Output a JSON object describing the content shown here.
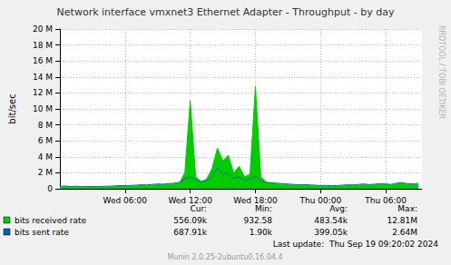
{
  "chart_data": {
    "type": "line",
    "title": "Network interface vmxnet3 Ethernet Adapter - Throughput - by day",
    "y_label": "bit/sec",
    "side_label": "RRDTOOL / TOBI OETIKER",
    "x": [
      0,
      0.5,
      1,
      1.5,
      2,
      2.5,
      3,
      3.5,
      4,
      4.5,
      5,
      5.5,
      6,
      6.5,
      7,
      7.5,
      8,
      8.5,
      9,
      9.5,
      10,
      10.5,
      11,
      11.5,
      12,
      12.5,
      13,
      13.5,
      14,
      14.5,
      15,
      15.5,
      16,
      16.5,
      17,
      17.5,
      18,
      18.5,
      19,
      19.5,
      20,
      20.5,
      21,
      21.5,
      22,
      22.5,
      23,
      23.5,
      24,
      24.5,
      25,
      25.5,
      26,
      26.5,
      27,
      27.5,
      28,
      28.5,
      29,
      29.5,
      30,
      30.5,
      31,
      31.5,
      32,
      32.5,
      33
    ],
    "xlim": [
      0,
      33.33
    ],
    "xticks": [
      {
        "value": 6,
        "label": "Wed 06:00"
      },
      {
        "value": 12,
        "label": "Wed 12:00"
      },
      {
        "value": 18,
        "label": "Wed 18:00"
      },
      {
        "value": 24,
        "label": "Thu 00:00"
      },
      {
        "value": 30,
        "label": "Thu 06:00"
      }
    ],
    "ylim": [
      0,
      20000000
    ],
    "yticks": [
      0,
      {
        "value": 2000000,
        "label": "2 M"
      },
      {
        "value": 4000000,
        "label": "4 M"
      },
      {
        "value": 6000000,
        "label": "6 M"
      },
      {
        "value": 8000000,
        "label": "8 M"
      },
      {
        "value": 10000000,
        "label": "10 M"
      },
      {
        "value": 12000000,
        "label": "12 M"
      },
      {
        "value": 14000000,
        "label": "14 M"
      },
      {
        "value": 16000000,
        "label": "16 M"
      },
      {
        "value": 18000000,
        "label": "18 M"
      },
      {
        "value": 20000000,
        "label": "20 M"
      }
    ],
    "grid": true,
    "stats_columns": [
      "Cur:",
      "Min:",
      "Avg:",
      "Max:"
    ],
    "series": [
      {
        "name": "bits received rate",
        "color": "#00CC00",
        "type": "area",
        "stats": [
          "556.09k",
          "932.58",
          "483.54k",
          "12.81M"
        ],
        "values": [
          200000,
          250000,
          180000,
          220000,
          150000,
          200000,
          180000,
          160000,
          200000,
          220000,
          250000,
          300000,
          280000,
          320000,
          350000,
          400000,
          380000,
          450000,
          500000,
          480000,
          550000,
          600000,
          700000,
          2000000,
          11000000,
          1500000,
          900000,
          1200000,
          2500000,
          5100000,
          3500000,
          4200000,
          2000000,
          2800000,
          1500000,
          1800000,
          12810000,
          1500000,
          800000,
          700000,
          600000,
          550000,
          500000,
          450000,
          400000,
          420000,
          380000,
          350000,
          300000,
          320000,
          280000,
          300000,
          350000,
          400000,
          380000,
          450000,
          500000,
          420000,
          480000,
          550000,
          500000,
          450000,
          600000,
          650000,
          550000,
          500000,
          556090
        ]
      },
      {
        "name": "bits sent rate",
        "color": "#0066B3",
        "type": "line",
        "stats": [
          "687.91k",
          "1.90k",
          "399.05k",
          "2.64M"
        ],
        "values": [
          300000,
          350000,
          280000,
          320000,
          250000,
          300000,
          280000,
          260000,
          300000,
          320000,
          350000,
          400000,
          380000,
          420000,
          450000,
          500000,
          480000,
          550000,
          600000,
          580000,
          650000,
          700000,
          800000,
          1200000,
          1500000,
          1100000,
          900000,
          1000000,
          1500000,
          2640000,
          1800000,
          2000000,
          1300000,
          1500000,
          1000000,
          1200000,
          1600000,
          1000000,
          800000,
          750000,
          700000,
          650000,
          600000,
          550000,
          500000,
          520000,
          480000,
          450000,
          400000,
          420000,
          380000,
          400000,
          450000,
          500000,
          480000,
          550000,
          600000,
          520000,
          580000,
          650000,
          600000,
          550000,
          700000,
          750000,
          650000,
          600000,
          687910
        ]
      }
    ],
    "footer": [
      "Last update:  Thu Sep 19 09:20:02 2024",
      "Munin 2.0.25-2ubuntu0.16.04.4"
    ]
  }
}
